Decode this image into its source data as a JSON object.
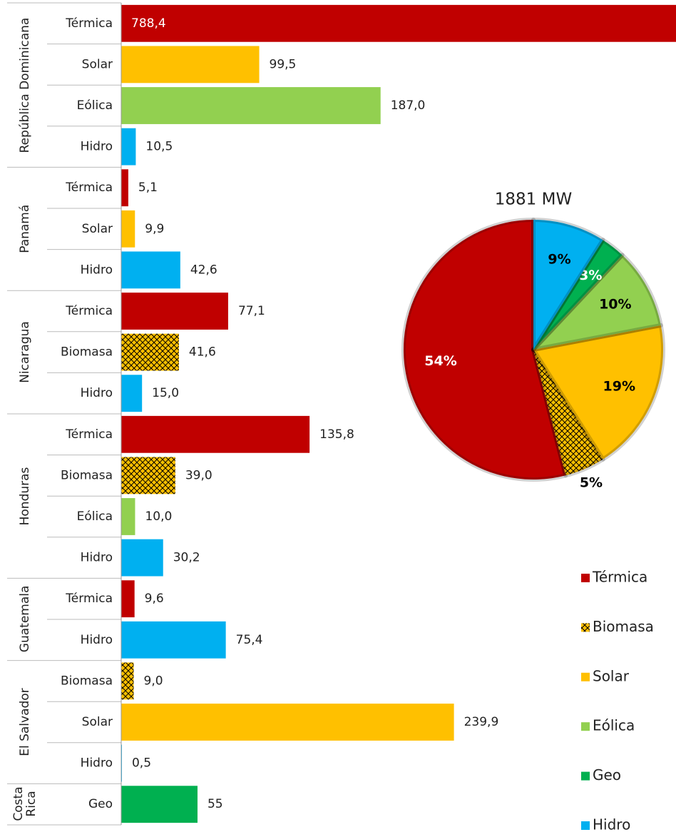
{
  "chart_data": [
    {
      "type": "grouped-hbar",
      "xlim": [
        0,
        400
      ],
      "groups": [
        {
          "name": "República Dominicana",
          "categories": [
            "Térmica",
            "Solar",
            "Eólica",
            "Hidro"
          ],
          "values": [
            788.4,
            99.5,
            187.0,
            10.5
          ],
          "value_labels": [
            "788,4",
            "99,5",
            "187,0",
            "10,5"
          ]
        },
        {
          "name": "Panamá",
          "categories": [
            "Térmica",
            "Solar",
            "Hidro"
          ],
          "values": [
            5.1,
            9.9,
            42.6
          ],
          "value_labels": [
            "5,1",
            "9,9",
            "42,6"
          ]
        },
        {
          "name": "Nicaragua",
          "categories": [
            "Térmica",
            "Biomasa",
            "Hidro"
          ],
          "values": [
            77.1,
            41.6,
            15.0
          ],
          "value_labels": [
            "77,1",
            "41,6",
            "15,0"
          ]
        },
        {
          "name": "Honduras",
          "categories": [
            "Térmica",
            "Biomasa",
            "Eólica",
            "Hidro"
          ],
          "values": [
            135.8,
            39.0,
            10.0,
            30.2
          ],
          "value_labels": [
            "135,8",
            "39,0",
            "10,0",
            "30,2"
          ]
        },
        {
          "name": "Guatemala",
          "categories": [
            "Térmica",
            "Hidro"
          ],
          "values": [
            9.6,
            75.4
          ],
          "value_labels": [
            "9,6",
            "75,4"
          ]
        },
        {
          "name": "El Salvador",
          "categories": [
            "Biomasa",
            "Solar",
            "Hidro"
          ],
          "values": [
            9.0,
            239.9,
            0.5
          ],
          "value_labels": [
            "9,0",
            "239,9",
            "0,5"
          ]
        },
        {
          "name": "Costa Rica",
          "categories": [
            "Geo"
          ],
          "values": [
            55
          ],
          "value_labels": [
            "55"
          ]
        }
      ]
    },
    {
      "type": "pie",
      "title": "1881 MW",
      "legend": "bottom-right",
      "categories": [
        "Térmica",
        "Biomasa",
        "Solar",
        "Eólica",
        "Geo",
        "Hidro"
      ],
      "values": [
        54,
        5,
        19,
        10,
        3,
        9
      ],
      "value_labels": [
        "54%",
        "5%",
        "19%",
        "10%",
        "3%",
        "9%"
      ],
      "colors": [
        "#c00000",
        "#ffc000",
        "#ffc000",
        "#92d050",
        "#00b050",
        "#00b0f0"
      ],
      "hatch": [
        false,
        true,
        false,
        false,
        false,
        false
      ],
      "label_colors": [
        "#ffffff",
        "#000000",
        "#000000",
        "#000000",
        "#ffffff",
        "#000000"
      ]
    }
  ]
}
